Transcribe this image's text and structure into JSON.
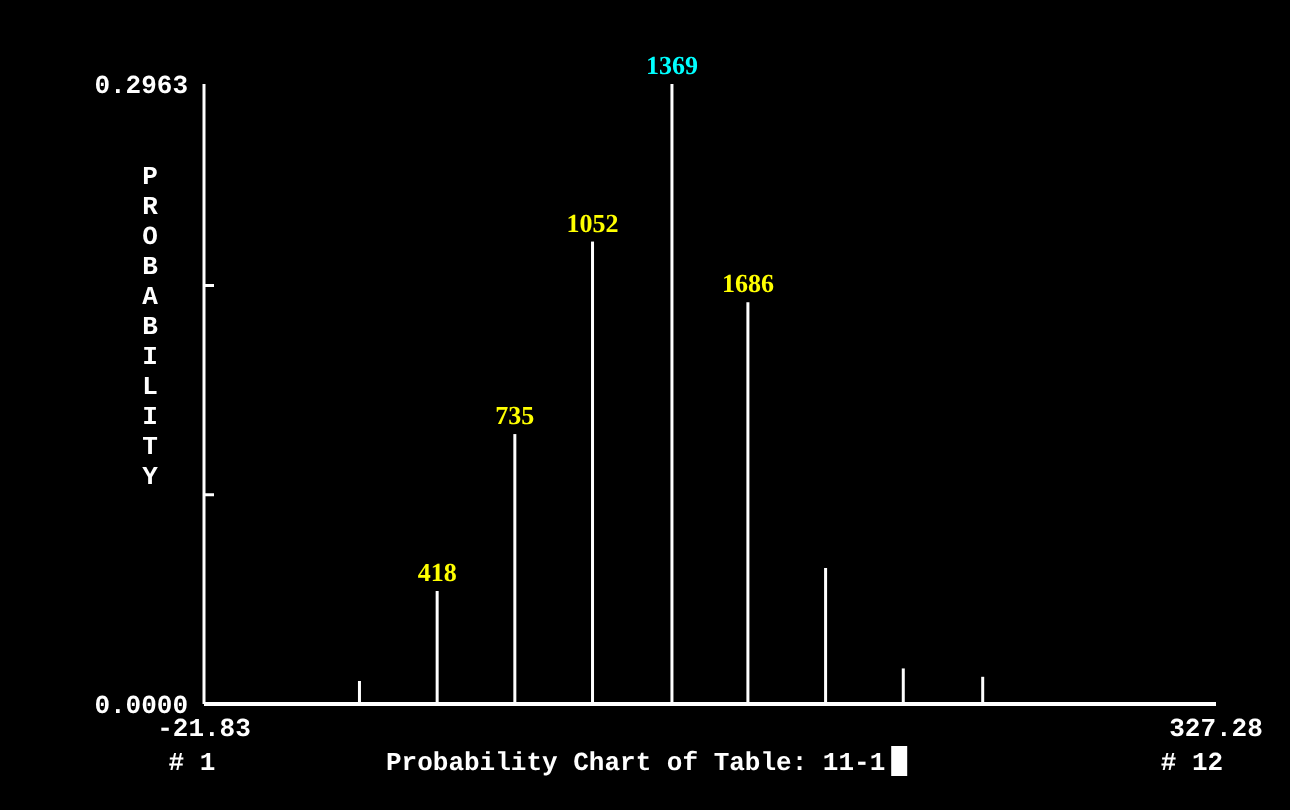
{
  "chart_data": {
    "type": "bar",
    "title": "Probability Chart of Table: 11-1",
    "ylabel": "PROBABILITY",
    "x": [
      31.8,
      58.6,
      85.4,
      112.2,
      139.6,
      165.8,
      192.6,
      219.4,
      246.8
    ],
    "values": [
      0.011,
      0.054,
      0.129,
      0.221,
      0.2963,
      0.192,
      0.065,
      0.017,
      0.013
    ],
    "color": "#ffffff",
    "xlim": [
      -21.83,
      327.28
    ],
    "xticks": [
      -21.83,
      327.28
    ],
    "ylim": [
      0,
      0.2963
    ],
    "yticks": [
      {
        "value": 0,
        "label": "0.0000"
      },
      {
        "value": 0.1,
        "label": null
      },
      {
        "value": 0.2,
        "label": null
      },
      0.2963
    ],
    "annotations": [
      "# 1",
      "# 12",
      {
        "text": "418",
        "x": 58.6,
        "y": 0.054
      },
      {
        "text": "735",
        "x": 85.4,
        "y": 0.129
      },
      {
        "text": "1052",
        "x": 112.2,
        "y": 0.221
      },
      {
        "text": "1369",
        "x": 139.6,
        "y": 0.2963
      },
      {
        "text": "1686",
        "x": 165.8,
        "y": 0.192
      }
    ]
  }
}
